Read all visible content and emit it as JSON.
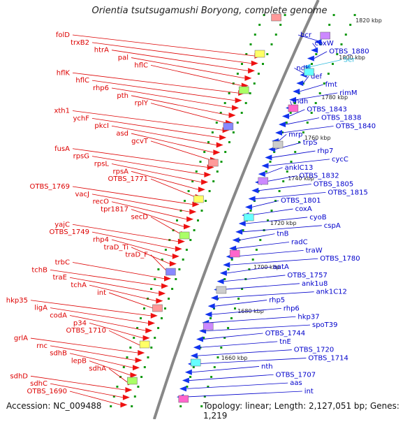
{
  "title": "Orientia tsutsugamushi Boryong, complete genome",
  "footer": {
    "accession": "Accession: NC_009488",
    "summary": "Topology: linear; Length: 2,127,051 bp; Genes: 1,219"
  },
  "colors": {
    "left_label": "#dd0000",
    "right_label": "#0000cc",
    "rna_label": "#33bbdd",
    "backbone": "#888888",
    "tick": "#119911"
  },
  "ruler_ticks": [
    "1820 kbp",
    "1800 kbp",
    "1780 kbp",
    "1760 kbp",
    "1740 kbp",
    "1720 kbp",
    "1700 kbp",
    "1680 kbp",
    "1660 kbp"
  ],
  "left_labels": [
    "folD",
    "trxB2",
    "htrA",
    "pal",
    "hflC",
    "hflK",
    "hflC",
    "rhp6",
    "pth",
    "rplY",
    "xth1",
    "ychF",
    "pkcI",
    "asd",
    "gcvT",
    "fusA",
    "rpsG",
    "rpsL",
    "rpsA",
    "OTBS_1771",
    "OTBS_1769",
    "vacJ",
    "recO",
    "tpr1817",
    "secD",
    "yajC",
    "OTBS_1749",
    "rhp4",
    "traD_Ti",
    "traD_F",
    "trbC",
    "tchB",
    "traE",
    "tchA",
    "int",
    "hkp35",
    "ligA",
    "codA",
    "p34",
    "OTBS_1710",
    "grlA",
    "rnc",
    "sdhB",
    "lepB",
    "sdhA",
    "sdhD",
    "sdhC",
    "OTBS_1690"
  ],
  "right_labels": [
    "bcr",
    "coxW",
    "OTBS_1880",
    "Ser",
    "ndk",
    "def",
    "fmt",
    "rimM",
    "mdh",
    "OTBS_1843",
    "OTBS_1838",
    "OTBS_1840",
    "mrp",
    "trpS",
    "rhp7",
    "cycC",
    "anklC13",
    "OTBS_1832",
    "OTBS_1805",
    "OTBS_1815",
    "OTBS_1801",
    "coxA",
    "cyoB",
    "cspA",
    "tnB",
    "radC",
    "traW",
    "OTBS_1780",
    "aatA",
    "OTBS_1757",
    "ank1u8",
    "ank1C12",
    "rhp5",
    "rhp6",
    "hkp37",
    "spoT39",
    "OTBS_1744",
    "tnE",
    "OTBS_1720",
    "OTBS_1714",
    "nth",
    "OTBS_1707",
    "aas",
    "int"
  ]
}
